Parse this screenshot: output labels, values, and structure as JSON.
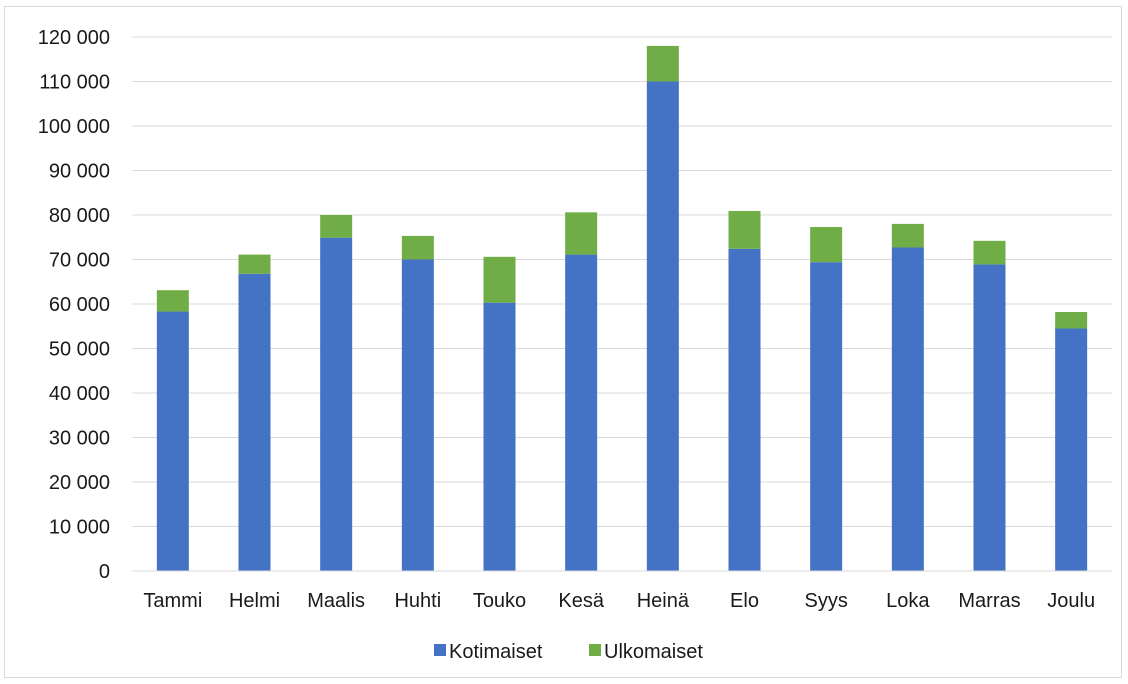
{
  "chart_data": {
    "type": "bar",
    "stacked": true,
    "categories": [
      "Tammi",
      "Helmi",
      "Maalis",
      "Huhti",
      "Touko",
      "Kesä",
      "Heinä",
      "Elo",
      "Syys",
      "Loka",
      "Marras",
      "Joulu"
    ],
    "series": [
      {
        "name": "Kotimaiset",
        "color": "#4472c4",
        "values": [
          58300,
          66800,
          74900,
          70000,
          60300,
          71100,
          110000,
          72400,
          69400,
          72700,
          68900,
          54500
        ]
      },
      {
        "name": "Ulkomaiset",
        "color": "#70ad47",
        "values": [
          4800,
          4300,
          5100,
          5300,
          10300,
          9500,
          8000,
          8500,
          7900,
          5300,
          5300,
          3700
        ]
      }
    ],
    "ylim": [
      0,
      120000
    ],
    "yticks": [
      0,
      10000,
      20000,
      30000,
      40000,
      50000,
      60000,
      70000,
      80000,
      90000,
      100000,
      110000,
      120000
    ],
    "ytick_labels": [
      "0",
      "10 000",
      "20 000",
      "30 000",
      "40 000",
      "50 000",
      "60 000",
      "70 000",
      "80 000",
      "90 000",
      "100 000",
      "110 000",
      "120 000"
    ],
    "grid": true,
    "legend_position": "bottom",
    "title": "",
    "xlabel": "",
    "ylabel": ""
  }
}
